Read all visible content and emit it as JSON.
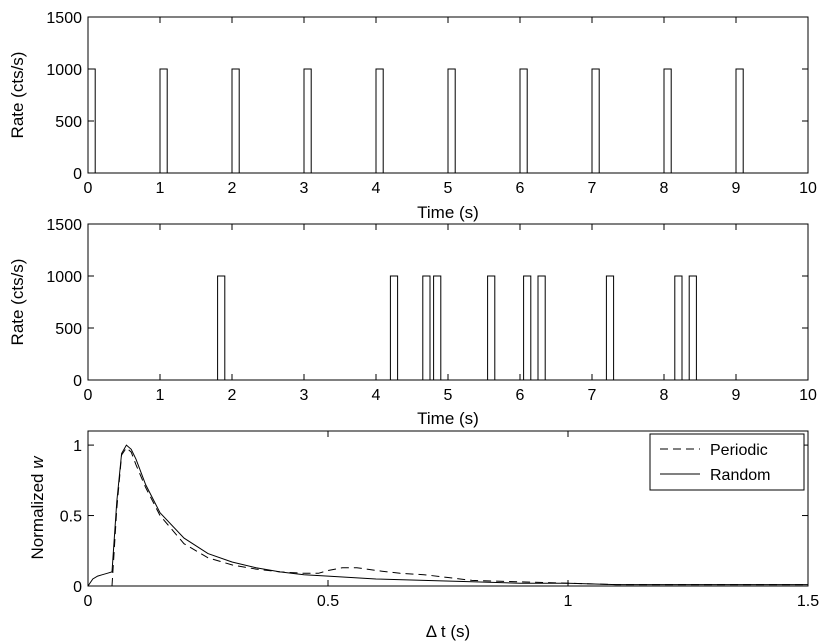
{
  "chart_data": [
    {
      "type": "line",
      "xlabel": "Time (s)",
      "ylabel": "Rate (cts/s)",
      "xlim": [
        0,
        10
      ],
      "ylim": [
        0,
        1500
      ],
      "xticks": [
        0,
        1,
        2,
        3,
        4,
        5,
        6,
        7,
        8,
        9,
        10
      ],
      "yticks": [
        0,
        500,
        1000,
        1500
      ],
      "xtick_labels": [
        "0",
        "1",
        "2",
        "3",
        "4",
        "5",
        "6",
        "7",
        "8",
        "9",
        "10"
      ],
      "ytick_labels": [
        "0",
        "500",
        "1000",
        "1500"
      ],
      "grid": false,
      "pulse_width": 0.1,
      "pulse_height": 1000,
      "pulse_starts": [
        0,
        1,
        2,
        3,
        4,
        5,
        6,
        7,
        8,
        9
      ]
    },
    {
      "type": "line",
      "xlabel": "Time (s)",
      "ylabel": "Rate (cts/s)",
      "xlim": [
        0,
        10
      ],
      "ylim": [
        0,
        1500
      ],
      "xticks": [
        0,
        1,
        2,
        3,
        4,
        5,
        6,
        7,
        8,
        9,
        10
      ],
      "yticks": [
        0,
        500,
        1000,
        1500
      ],
      "xtick_labels": [
        "0",
        "1",
        "2",
        "3",
        "4",
        "5",
        "6",
        "7",
        "8",
        "9",
        "10"
      ],
      "ytick_labels": [
        "0",
        "500",
        "1000",
        "1500"
      ],
      "grid": false,
      "pulse_width": 0.1,
      "pulse_height": 1000,
      "pulse_starts": [
        1.8,
        4.2,
        4.65,
        4.8,
        5.55,
        6.05,
        6.25,
        7.2,
        8.15,
        8.35
      ]
    },
    {
      "type": "line",
      "xlabel": "Δ t (s)",
      "ylabel_prefix": "Normalized ",
      "ylabel_var": "w",
      "xlim": [
        0,
        1.5
      ],
      "ylim": [
        0,
        1.1
      ],
      "xticks": [
        0,
        0.5,
        1,
        1.5
      ],
      "yticks": [
        0,
        0.5,
        1
      ],
      "xtick_labels": [
        "0",
        "0.5",
        "1",
        "1.5"
      ],
      "ytick_labels": [
        "0",
        "0.5",
        "1"
      ],
      "grid": false,
      "legend_position": "top-right",
      "series": [
        {
          "name": "Periodic",
          "style": "dashed",
          "x": [
            0.05,
            0.06,
            0.07,
            0.08,
            0.09,
            0.1,
            0.12,
            0.15,
            0.2,
            0.25,
            0.3,
            0.35,
            0.4,
            0.45,
            0.48,
            0.5,
            0.53,
            0.56,
            0.6,
            0.65,
            0.7,
            0.75,
            0.8,
            0.9,
            1.0,
            1.1,
            1.2,
            1.3,
            1.4,
            1.5
          ],
          "values": [
            0,
            0.55,
            0.93,
            0.98,
            0.95,
            0.86,
            0.7,
            0.5,
            0.3,
            0.2,
            0.15,
            0.12,
            0.1,
            0.09,
            0.09,
            0.11,
            0.13,
            0.13,
            0.11,
            0.09,
            0.08,
            0.06,
            0.04,
            0.03,
            0.02,
            0.01,
            0.01,
            0.01,
            0.01,
            0.01
          ]
        },
        {
          "name": "Random",
          "style": "solid",
          "x": [
            0.0,
            0.01,
            0.02,
            0.03,
            0.04,
            0.05,
            0.06,
            0.07,
            0.08,
            0.09,
            0.1,
            0.12,
            0.15,
            0.2,
            0.25,
            0.3,
            0.35,
            0.4,
            0.45,
            0.5,
            0.6,
            0.7,
            0.8,
            0.9,
            1.0,
            1.1,
            1.2,
            1.3,
            1.4,
            1.5
          ],
          "values": [
            0,
            0.05,
            0.07,
            0.08,
            0.09,
            0.1,
            0.6,
            0.94,
            1.0,
            0.97,
            0.9,
            0.72,
            0.52,
            0.34,
            0.23,
            0.17,
            0.13,
            0.1,
            0.08,
            0.07,
            0.05,
            0.04,
            0.03,
            0.02,
            0.02,
            0.01,
            0.01,
            0.01,
            0.01,
            0.01
          ]
        }
      ]
    }
  ]
}
